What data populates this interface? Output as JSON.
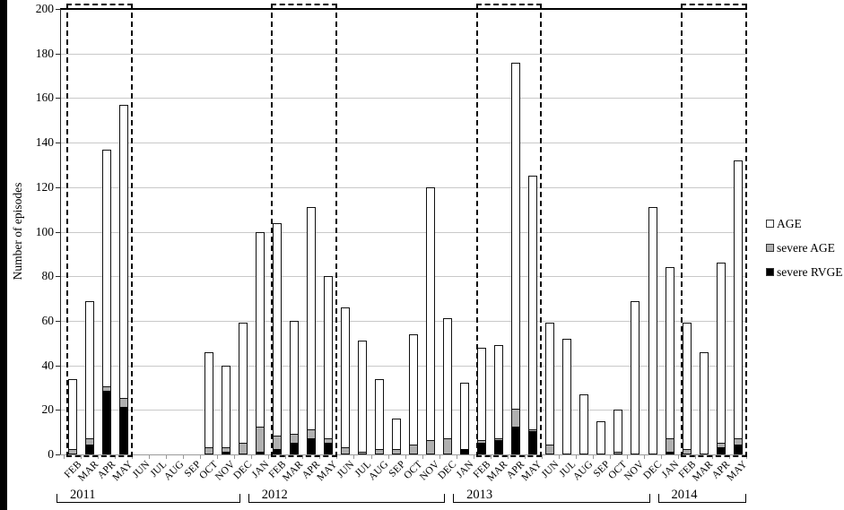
{
  "chart_data": {
    "type": "bar",
    "stacked": true,
    "title": "",
    "ylabel": "Number of episodes",
    "xlabel": "",
    "ylim": [
      0,
      200
    ],
    "ytick_step": 20,
    "grid": true,
    "legend_position": "right",
    "months": [
      "FEB",
      "MAR",
      "APR",
      "MAY",
      "JUN",
      "JUL",
      "AUG",
      "SEP",
      "OCT",
      "NOV",
      "DEC",
      "JAN",
      "FEB",
      "MAR",
      "APR",
      "MAY",
      "JUN",
      "JUL",
      "AUG",
      "SEP",
      "OCT",
      "NOV",
      "DEC",
      "JAN",
      "FEB",
      "MAR",
      "APR",
      "MAY",
      "JUN",
      "JUL",
      "AUG",
      "SEP",
      "OCT",
      "NOV",
      "DEC",
      "JAN",
      "FEB",
      "MAR",
      "APR",
      "MAY"
    ],
    "year_groups": [
      {
        "label": "2011",
        "start": 0,
        "end": 10
      },
      {
        "label": "2012",
        "start": 11,
        "end": 22
      },
      {
        "label": "2013",
        "start": 23,
        "end": 34
      },
      {
        "label": "2014",
        "start": 35,
        "end": 39
      }
    ],
    "highlight_boxes": [
      {
        "start": 0,
        "end": 3,
        "note": "FEB-MAY 2011"
      },
      {
        "start": 12,
        "end": 15,
        "note": "FEB-MAY 2012"
      },
      {
        "start": 24,
        "end": 27,
        "note": "FEB-MAY 2013"
      },
      {
        "start": 36,
        "end": 39,
        "note": "FEB-MAY 2014"
      }
    ],
    "series": [
      {
        "name": "severe RVGE",
        "color": "#000000",
        "stack_order": 0,
        "values": [
          0,
          4,
          28,
          21,
          0,
          0,
          0,
          0,
          0,
          1,
          0,
          1,
          2,
          5,
          7,
          5,
          0,
          0,
          0,
          0,
          0,
          0,
          0,
          2,
          5,
          6,
          12,
          10,
          0,
          0,
          0,
          0,
          0,
          0,
          0,
          1,
          0,
          0,
          3,
          4
        ]
      },
      {
        "name": "severe AGE",
        "color": "#b0b0b0",
        "stack_order": 1,
        "values": [
          2,
          3,
          2,
          4,
          0,
          0,
          0,
          0,
          3,
          2,
          5,
          11,
          6,
          4,
          4,
          2,
          3,
          1,
          2,
          2,
          4,
          6,
          7,
          0,
          1,
          1,
          8,
          1,
          4,
          0,
          0,
          0,
          1,
          0,
          0,
          6,
          2,
          0,
          2,
          3
        ]
      },
      {
        "name": "AGE",
        "color": "#ffffff",
        "stack_order": 2,
        "values": [
          32,
          62,
          107,
          132,
          0,
          0,
          0,
          0,
          43,
          37,
          54,
          88,
          96,
          51,
          100,
          73,
          63,
          50,
          32,
          14,
          50,
          114,
          54,
          30,
          42,
          42,
          156,
          114,
          55,
          52,
          27,
          15,
          19,
          69,
          111,
          77,
          57,
          46,
          81,
          125
        ]
      }
    ],
    "totals": [
      34,
      69,
      137,
      157,
      0,
      0,
      0,
      0,
      46,
      40,
      59,
      100,
      104,
      60,
      111,
      80,
      66,
      51,
      34,
      16,
      54,
      120,
      61,
      32,
      48,
      49,
      176,
      125,
      59,
      52,
      27,
      15,
      20,
      69,
      111,
      84,
      59,
      46,
      86,
      132
    ],
    "legend": [
      {
        "label": "AGE",
        "color": "#ffffff"
      },
      {
        "label": "severe AGE",
        "color": "#b0b0b0"
      },
      {
        "label": "severe RVGE",
        "color": "#000000"
      }
    ]
  }
}
